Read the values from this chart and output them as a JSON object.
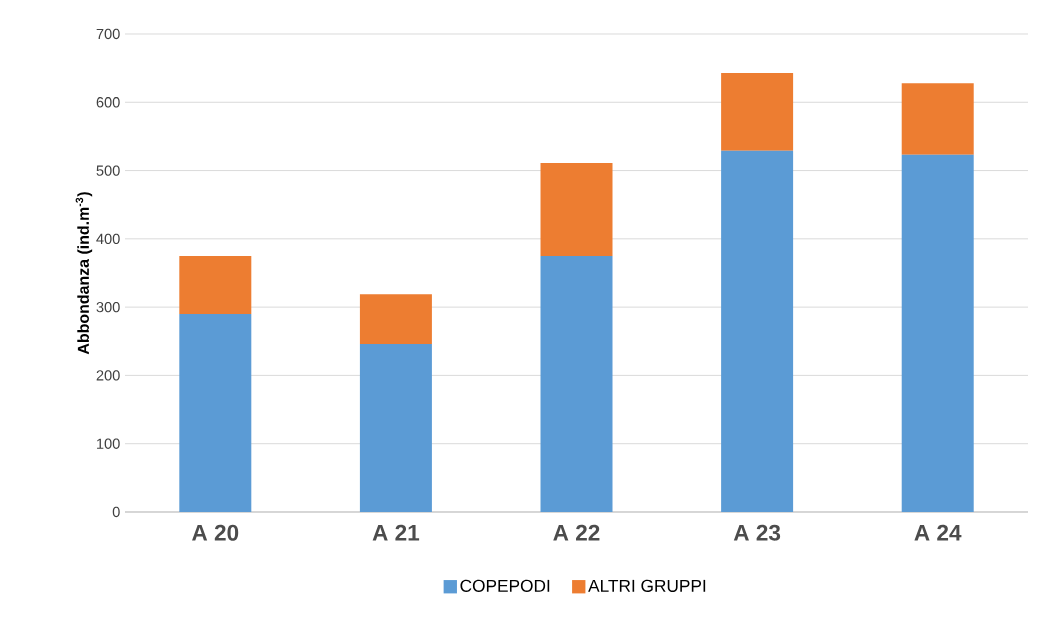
{
  "chart_data": {
    "type": "bar",
    "stacked": true,
    "ylabel": "Abbondanza (ind.m$^{-3}$)",
    "categories": [
      "A 20",
      "A 21",
      "A 22",
      "A 23",
      "A 24"
    ],
    "series": [
      {
        "name": "COPEPODI",
        "color": "#5b9bd5",
        "values": [
          290,
          246,
          375,
          529,
          523
        ]
      },
      {
        "name": "ALTRI GRUPPI",
        "color": "#ed7d31",
        "values": [
          85,
          73,
          136,
          114,
          105
        ]
      }
    ],
    "ylim": [
      0,
      700
    ],
    "yticks": [
      0,
      100,
      200,
      300,
      400,
      500,
      600,
      700
    ],
    "grid": "y",
    "legend": "bottom"
  }
}
